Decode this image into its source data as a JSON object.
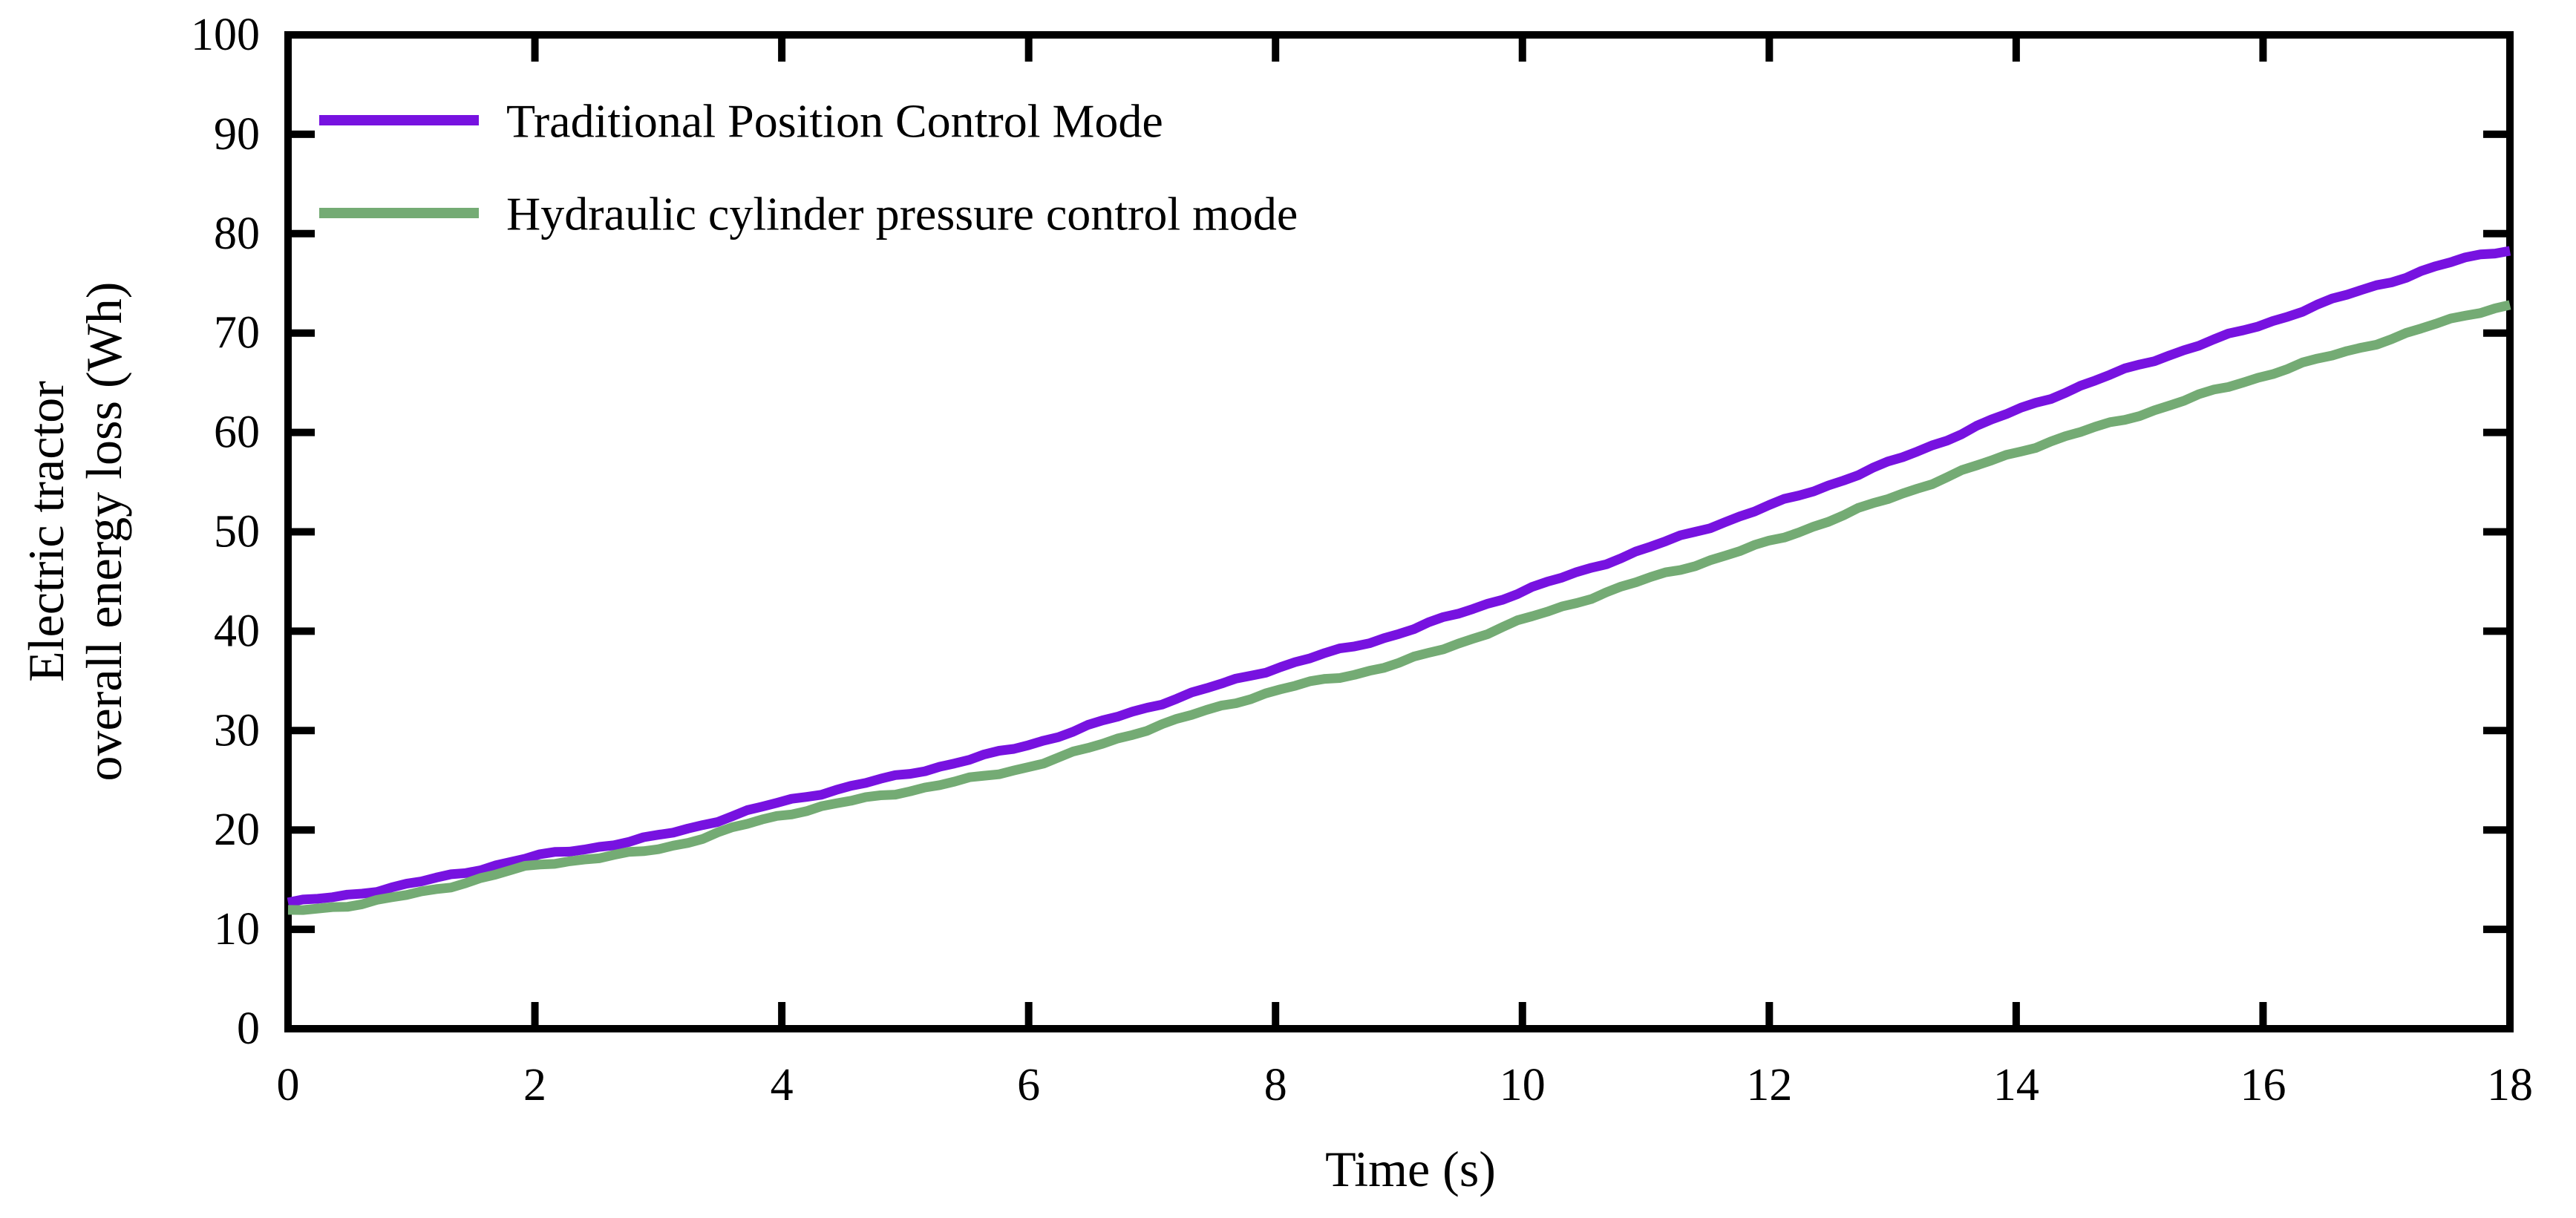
{
  "page": {
    "background": "#ffffff",
    "axis_color": "#000000"
  },
  "chart_data": {
    "type": "line",
    "title": "",
    "xlabel": "Time (s)",
    "ylabel_line1": "Electric tractor",
    "ylabel_line2": "overall energy loss (Wh)",
    "xlim": [
      0,
      18
    ],
    "ylim": [
      0,
      100
    ],
    "xticks": [
      0,
      2,
      4,
      6,
      8,
      10,
      12,
      14,
      16,
      18
    ],
    "yticks": [
      0,
      10,
      20,
      30,
      40,
      50,
      60,
      70,
      80,
      90,
      100
    ],
    "grid": false,
    "legend_position": "upper-left-inside",
    "x": [
      0,
      1,
      2,
      3,
      4,
      5,
      6,
      7,
      8,
      9,
      10,
      11,
      12,
      13,
      14,
      15,
      16,
      17,
      18
    ],
    "series": [
      {
        "name": "Traditional Position Control Mode",
        "color": "#7712E0",
        "values": [
          12.7,
          14.6,
          17.3,
          19.4,
          22.8,
          25.6,
          28.6,
          32.5,
          36.3,
          39.8,
          44.0,
          48.3,
          52.6,
          57.1,
          62.2,
          66.8,
          70.9,
          75.1,
          78.4
        ]
      },
      {
        "name": "Hydraulic cylinder pressure control mode",
        "color": "#74AB74",
        "values": [
          11.8,
          13.5,
          16.4,
          18.1,
          21.5,
          23.9,
          26.4,
          30.3,
          34.0,
          36.8,
          41.1,
          45.2,
          49.0,
          53.5,
          58.0,
          61.8,
          65.7,
          69.3,
          72.8
        ]
      }
    ]
  }
}
